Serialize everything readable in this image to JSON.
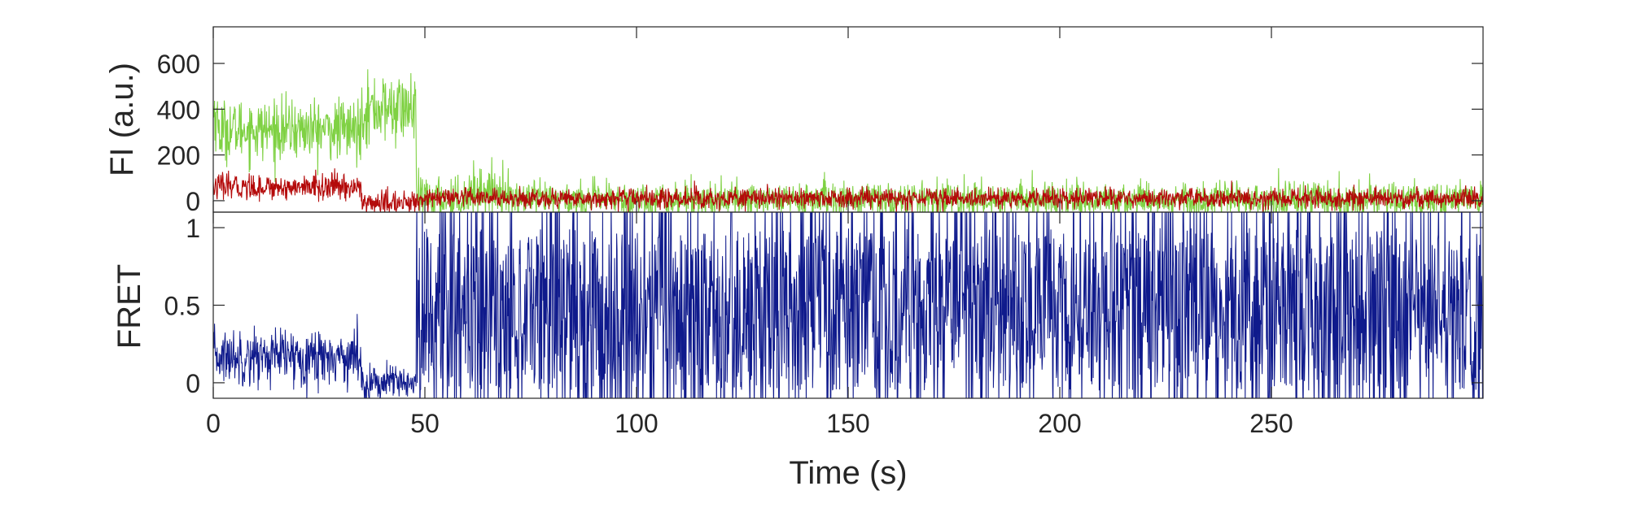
{
  "chart_data": [
    {
      "type": "line",
      "panel": "top",
      "ylabel": "FI (a.u.)",
      "xlabel": "",
      "xlim": [
        0,
        300
      ],
      "ylim": [
        -50,
        760
      ],
      "yticks": [
        0,
        200,
        400,
        600
      ],
      "ytick_labels": [
        "0",
        "200",
        "400",
        "600"
      ],
      "xticks": [
        0,
        50,
        100,
        150,
        200,
        250
      ],
      "grid": false,
      "series": [
        {
          "color": "#7fd143",
          "segments": [
            {
              "x_range": [
                0,
                2
              ],
              "start": 400,
              "end": 280,
              "noise": 70
            },
            {
              "x_range": [
                2,
                35
              ],
              "mean": 310,
              "noise": 65
            },
            {
              "x_range": [
                35,
                48
              ],
              "mean": 400,
              "noise": 75
            },
            {
              "x_range": [
                48,
                60
              ],
              "mean": 10,
              "noise": 45
            },
            {
              "x_range": [
                60,
                70
              ],
              "mean": 40,
              "noise": 50
            },
            {
              "x_range": [
                70,
                300
              ],
              "mean": 5,
              "noise": 38
            }
          ]
        },
        {
          "color": "#b40a0a",
          "segments": [
            {
              "x_range": [
                0,
                35
              ],
              "mean": 60,
              "noise": 28
            },
            {
              "x_range": [
                35,
                48
              ],
              "mean": -10,
              "noise": 25
            },
            {
              "x_range": [
                48,
                300
              ],
              "mean": 10,
              "noise": 22
            }
          ]
        }
      ]
    },
    {
      "type": "line",
      "panel": "bottom",
      "ylabel": "FRET",
      "xlabel": "Time (s)",
      "xlim": [
        0,
        300
      ],
      "ylim": [
        -0.1,
        1.1
      ],
      "yticks": [
        0,
        0.5,
        1
      ],
      "ytick_labels": [
        "0",
        "0.5",
        "1"
      ],
      "xticks": [
        0,
        50,
        100,
        150,
        200,
        250
      ],
      "xtick_labels": [
        "0",
        "50",
        "100",
        "150",
        "200",
        "250"
      ],
      "grid": false,
      "series": [
        {
          "color": "#0f1a8c",
          "segments": [
            {
              "x_range": [
                0,
                35
              ],
              "mean": 0.17,
              "noise": 0.09
            },
            {
              "x_range": [
                35,
                48
              ],
              "mean": 0.0,
              "noise": 0.06
            },
            {
              "x_range": [
                48,
                300
              ],
              "mean": 0.45,
              "noise": 0.5
            }
          ]
        }
      ]
    }
  ]
}
